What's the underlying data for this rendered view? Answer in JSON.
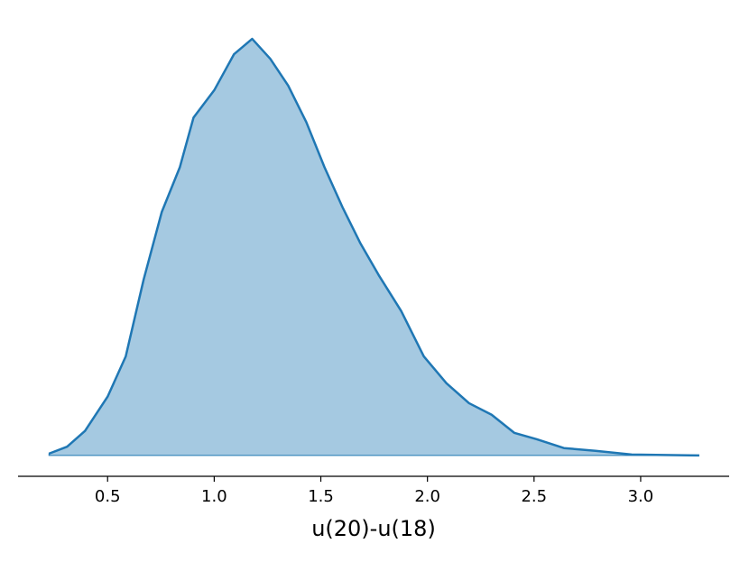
{
  "chart_data": {
    "type": "area",
    "xlabel": "u(20)-u(18)",
    "x": [
      0.225,
      0.31,
      0.394,
      0.5,
      0.585,
      0.669,
      0.754,
      0.839,
      0.903,
      1.0,
      1.093,
      1.178,
      1.263,
      1.347,
      1.432,
      1.517,
      1.602,
      1.686,
      1.771,
      1.877,
      1.983,
      2.089,
      2.195,
      2.301,
      2.407,
      2.513,
      2.64,
      2.788,
      2.958,
      3.275
    ],
    "series": [
      {
        "color": "#1f77b4",
        "values": [
          0.004,
          0.019,
          0.053,
          0.127,
          0.214,
          0.38,
          0.526,
          0.623,
          0.73,
          0.789,
          0.867,
          0.9,
          0.857,
          0.799,
          0.72,
          0.623,
          0.536,
          0.458,
          0.39,
          0.312,
          0.214,
          0.156,
          0.113,
          0.088,
          0.049,
          0.035,
          0.016,
          0.01,
          0.002,
          0.0
        ]
      }
    ],
    "xlim": [
      0.08,
      3.415
    ],
    "ylim": [
      -0.045,
      0.945
    ],
    "xticks": [
      0.5,
      {
        "value": 1.0,
        "label": "1.0"
      },
      1.5,
      {
        "value": 2.0,
        "label": "2.0"
      },
      2.5,
      {
        "value": 3.0,
        "label": "3.0"
      }
    ]
  }
}
